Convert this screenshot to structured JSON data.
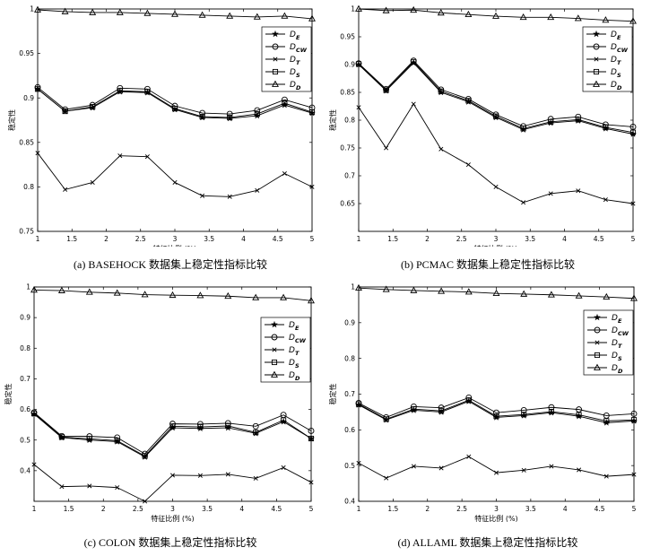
{
  "legend_labels": [
    "D_E",
    "D_CW",
    "D_T",
    "D_S",
    "D_D"
  ],
  "chart_data": [
    {
      "type": "line",
      "caption": "(a) BASEHOCK 数据集上稳定性指标比较",
      "xlabel": "特征比例 (%)",
      "ylabel": "稳定性",
      "xlim": [
        1,
        5
      ],
      "ylim": [
        0.75,
        1
      ],
      "xticks": [
        1,
        1.5,
        2,
        2.5,
        3,
        3.5,
        4,
        4.5,
        5
      ],
      "yticks": [
        0.75,
        0.8,
        0.85,
        0.9,
        0.95,
        1
      ],
      "x": [
        1,
        1.4,
        1.8,
        2.2,
        2.6,
        3,
        3.4,
        3.8,
        4.2,
        4.6,
        5
      ],
      "legend_position": "top-right",
      "series": [
        {
          "name": "D_E",
          "marker": "star",
          "values": [
            0.91,
            0.885,
            0.889,
            0.907,
            0.906,
            0.887,
            0.878,
            0.877,
            0.88,
            0.892,
            0.883
          ]
        },
        {
          "name": "D_CW",
          "marker": "circle",
          "values": [
            0.912,
            0.887,
            0.892,
            0.911,
            0.91,
            0.891,
            0.883,
            0.882,
            0.886,
            0.898,
            0.889
          ]
        },
        {
          "name": "D_T",
          "marker": "x",
          "values": [
            0.838,
            0.797,
            0.805,
            0.835,
            0.834,
            0.805,
            0.79,
            0.789,
            0.796,
            0.815,
            0.8
          ]
        },
        {
          "name": "D_S",
          "marker": "square",
          "values": [
            0.91,
            0.885,
            0.89,
            0.908,
            0.907,
            0.888,
            0.879,
            0.878,
            0.882,
            0.894,
            0.884
          ]
        },
        {
          "name": "D_D",
          "marker": "triangle",
          "values": [
            0.999,
            0.997,
            0.996,
            0.996,
            0.995,
            0.994,
            0.993,
            0.992,
            0.991,
            0.992,
            0.989
          ]
        }
      ]
    },
    {
      "type": "line",
      "caption": "(b) PCMAC 数据集上稳定性指标比较",
      "xlabel": "特征比例 (%)",
      "ylabel": "稳定性",
      "xlim": [
        1,
        5
      ],
      "ylim": [
        0.6,
        1
      ],
      "xticks": [
        1,
        1.5,
        2,
        2.5,
        3,
        3.5,
        4,
        4.5,
        5
      ],
      "yticks": [
        0.65,
        0.7,
        0.75,
        0.8,
        0.85,
        0.9,
        0.95,
        1
      ],
      "x": [
        1,
        1.4,
        1.8,
        2.2,
        2.6,
        3,
        3.4,
        3.8,
        4.2,
        4.6,
        5
      ],
      "legend_position": "top-right",
      "series": [
        {
          "name": "D_E",
          "marker": "star",
          "values": [
            0.9,
            0.853,
            0.903,
            0.85,
            0.833,
            0.805,
            0.783,
            0.795,
            0.799,
            0.785,
            0.775
          ]
        },
        {
          "name": "D_CW",
          "marker": "circle",
          "values": [
            0.902,
            0.856,
            0.907,
            0.855,
            0.838,
            0.81,
            0.789,
            0.802,
            0.806,
            0.792,
            0.788
          ]
        },
        {
          "name": "D_T",
          "marker": "x",
          "values": [
            0.823,
            0.75,
            0.829,
            0.748,
            0.72,
            0.68,
            0.652,
            0.668,
            0.673,
            0.657,
            0.65
          ]
        },
        {
          "name": "D_S",
          "marker": "square",
          "values": [
            0.901,
            0.854,
            0.905,
            0.852,
            0.835,
            0.807,
            0.785,
            0.797,
            0.801,
            0.787,
            0.778
          ]
        },
        {
          "name": "D_D",
          "marker": "triangle",
          "values": [
            1.0,
            0.997,
            0.998,
            0.993,
            0.99,
            0.987,
            0.985,
            0.985,
            0.983,
            0.98,
            0.978
          ]
        }
      ]
    },
    {
      "type": "line",
      "caption": "(c) COLON 数据集上稳定性指标比较",
      "xlabel": "特征比例 (%)",
      "ylabel": "稳定性",
      "xlim": [
        1,
        5
      ],
      "ylim": [
        0.3,
        1
      ],
      "xticks": [
        1,
        1.5,
        2,
        2.5,
        3,
        3.5,
        4,
        4.5,
        5
      ],
      "yticks": [
        0.4,
        0.5,
        0.6,
        0.7,
        0.8,
        0.9,
        1
      ],
      "x": [
        1,
        1.4,
        1.8,
        2.2,
        2.6,
        3,
        3.4,
        3.8,
        4.2,
        4.6,
        5
      ],
      "legend_position": "right",
      "series": [
        {
          "name": "D_E",
          "marker": "star",
          "values": [
            0.585,
            0.508,
            0.5,
            0.495,
            0.445,
            0.54,
            0.538,
            0.54,
            0.522,
            0.56,
            0.505
          ]
        },
        {
          "name": "D_CW",
          "marker": "circle",
          "values": [
            0.59,
            0.513,
            0.512,
            0.508,
            0.455,
            0.553,
            0.552,
            0.555,
            0.545,
            0.582,
            0.53
          ]
        },
        {
          "name": "D_T",
          "marker": "x",
          "values": [
            0.42,
            0.348,
            0.35,
            0.345,
            0.3,
            0.385,
            0.384,
            0.388,
            0.375,
            0.41,
            0.362
          ]
        },
        {
          "name": "D_S",
          "marker": "square",
          "values": [
            0.587,
            0.51,
            0.504,
            0.498,
            0.448,
            0.545,
            0.543,
            0.546,
            0.525,
            0.565,
            0.505
          ]
        },
        {
          "name": "D_D",
          "marker": "triangle",
          "values": [
            0.99,
            0.988,
            0.983,
            0.98,
            0.975,
            0.973,
            0.972,
            0.97,
            0.965,
            0.965,
            0.955
          ]
        }
      ]
    },
    {
      "type": "line",
      "caption": "(d) ALLAML 数据集上稳定性指标比较",
      "xlabel": "特征比例 (%)",
      "ylabel": "稳定性",
      "xlim": [
        1,
        5
      ],
      "ylim": [
        0.4,
        1
      ],
      "xticks": [
        1,
        1.5,
        2,
        2.5,
        3,
        3.5,
        4,
        4.5,
        5
      ],
      "yticks": [
        0.4,
        0.5,
        0.6,
        0.7,
        0.8,
        0.9,
        1
      ],
      "x": [
        1,
        1.4,
        1.8,
        2.2,
        2.6,
        3,
        3.4,
        3.8,
        4.2,
        4.6,
        5
      ],
      "legend_position": "right",
      "series": [
        {
          "name": "D_E",
          "marker": "star",
          "values": [
            0.67,
            0.628,
            0.655,
            0.65,
            0.68,
            0.635,
            0.64,
            0.648,
            0.638,
            0.62,
            0.625
          ]
        },
        {
          "name": "D_CW",
          "marker": "circle",
          "values": [
            0.675,
            0.635,
            0.665,
            0.662,
            0.69,
            0.648,
            0.655,
            0.663,
            0.657,
            0.64,
            0.645
          ]
        },
        {
          "name": "D_T",
          "marker": "x",
          "values": [
            0.507,
            0.465,
            0.498,
            0.493,
            0.525,
            0.48,
            0.487,
            0.498,
            0.488,
            0.47,
            0.475
          ]
        },
        {
          "name": "D_S",
          "marker": "square",
          "values": [
            0.672,
            0.63,
            0.658,
            0.653,
            0.683,
            0.638,
            0.643,
            0.651,
            0.642,
            0.625,
            0.628
          ]
        },
        {
          "name": "D_D",
          "marker": "triangle",
          "values": [
            0.997,
            0.993,
            0.99,
            0.988,
            0.986,
            0.982,
            0.98,
            0.978,
            0.975,
            0.972,
            0.968
          ]
        }
      ]
    }
  ]
}
